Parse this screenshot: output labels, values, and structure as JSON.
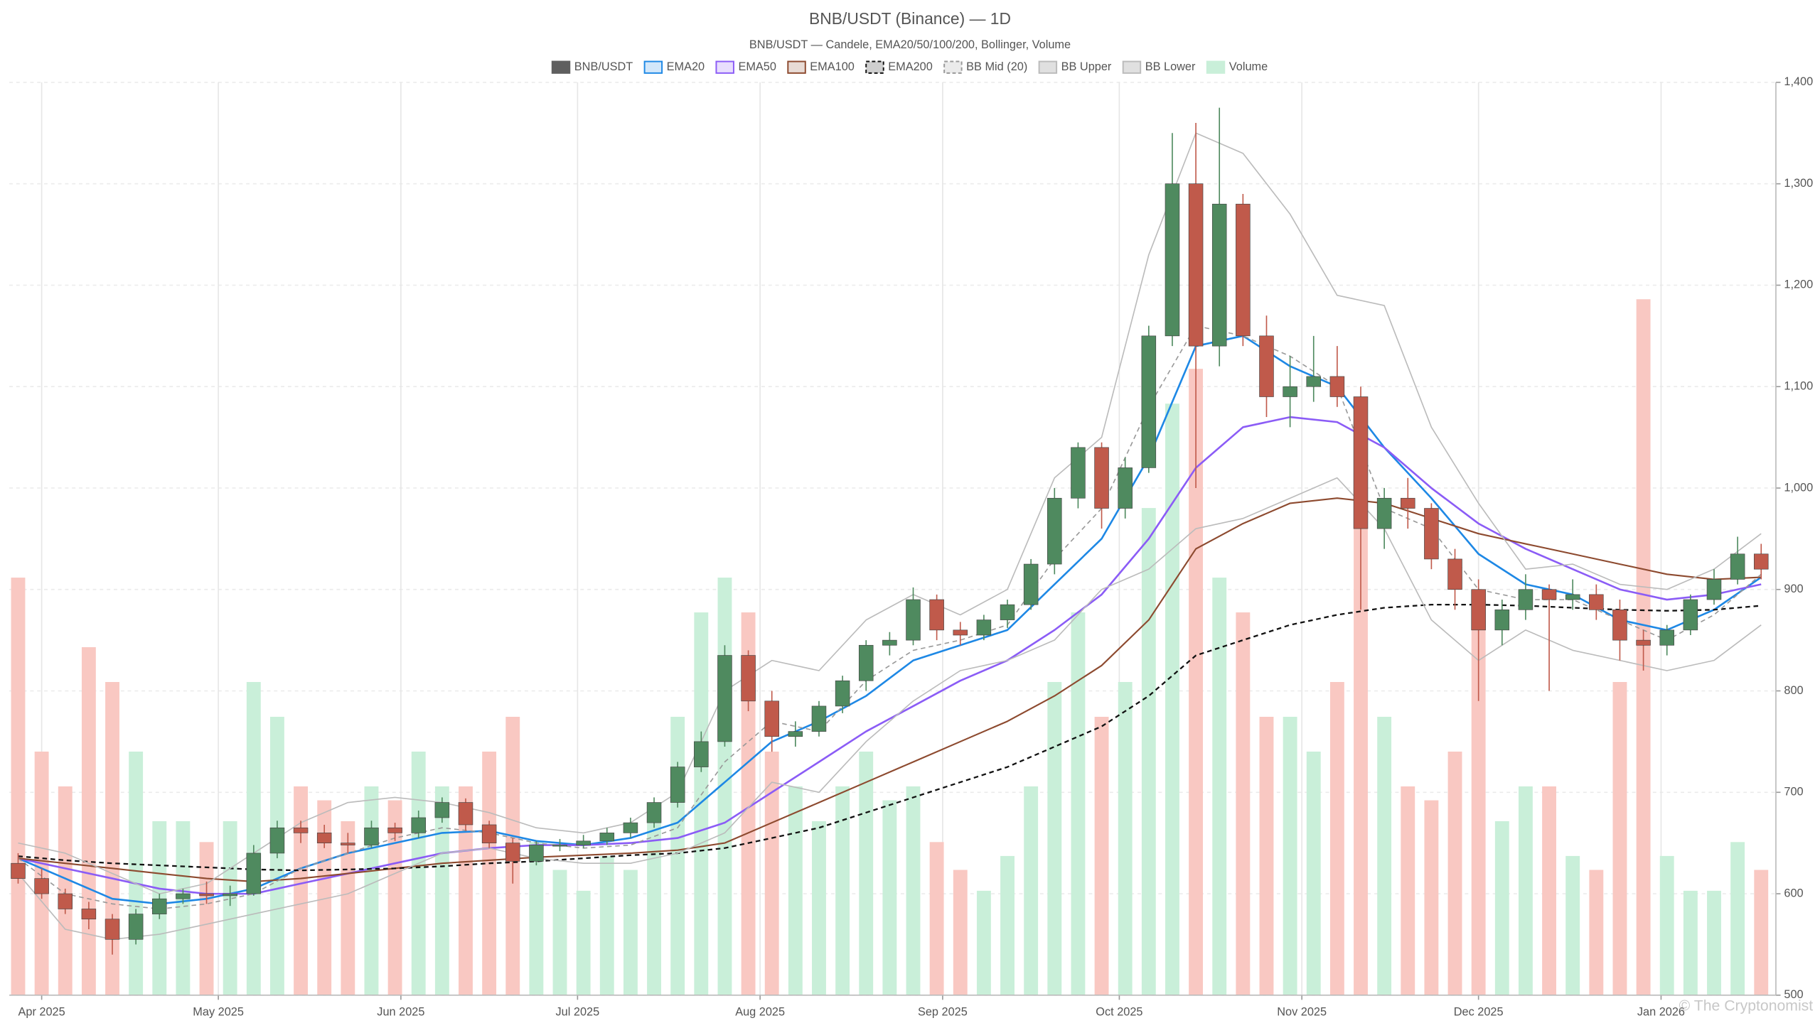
{
  "chart_data": {
    "type": "candlestick",
    "title": "BNB/USDT (Binance) — 1D",
    "subtitle": "BNB/USDT — Candele, EMA20/50/100/200, Bollinger, Volume",
    "watermark": "© The Cryptonomist",
    "price": {
      "name": "BNB/USDT",
      "color": "#5f5f5f",
      "up_color": "#4f8a5f",
      "down_color": "#c05a4b"
    },
    "x": [
      -4,
      0,
      4,
      8,
      12,
      16,
      20,
      24,
      28,
      32,
      36,
      40,
      44,
      48,
      52,
      56,
      60,
      64,
      68,
      72,
      76,
      80,
      84,
      88,
      92,
      96,
      100,
      104,
      108,
      112,
      116,
      120,
      124,
      128,
      132,
      136,
      140,
      144,
      148,
      152,
      156,
      160,
      164,
      168,
      172,
      176,
      180,
      184,
      188,
      192,
      196,
      200,
      204,
      208,
      212,
      216,
      220,
      224,
      228,
      232,
      236,
      240,
      244,
      248,
      252,
      256,
      260,
      264,
      268,
      272,
      276,
      280,
      284,
      288,
      292
    ],
    "candles": [
      [
        630,
        640,
        610,
        615
      ],
      [
        615,
        625,
        595,
        600
      ],
      [
        600,
        605,
        580,
        585
      ],
      [
        585,
        592,
        565,
        575
      ],
      [
        575,
        580,
        540,
        555
      ],
      [
        555,
        585,
        550,
        580
      ],
      [
        580,
        600,
        575,
        595
      ],
      [
        595,
        605,
        590,
        600
      ],
      [
        600,
        612,
        590,
        598
      ],
      [
        598,
        608,
        588,
        600
      ],
      [
        600,
        648,
        598,
        640
      ],
      [
        640,
        672,
        635,
        665
      ],
      [
        665,
        672,
        650,
        660
      ],
      [
        660,
        668,
        645,
        650
      ],
      [
        650,
        660,
        640,
        648
      ],
      [
        648,
        672,
        645,
        665
      ],
      [
        665,
        670,
        652,
        660
      ],
      [
        660,
        682,
        655,
        675
      ],
      [
        675,
        695,
        670,
        690
      ],
      [
        690,
        694,
        662,
        668
      ],
      [
        668,
        672,
        645,
        650
      ],
      [
        650,
        655,
        610,
        632
      ],
      [
        632,
        652,
        628,
        648
      ],
      [
        648,
        654,
        642,
        648
      ],
      [
        648,
        658,
        645,
        652
      ],
      [
        652,
        665,
        648,
        660
      ],
      [
        660,
        675,
        655,
        670
      ],
      [
        670,
        695,
        665,
        690
      ],
      [
        690,
        730,
        685,
        725
      ],
      [
        725,
        760,
        720,
        750
      ],
      [
        750,
        845,
        745,
        835
      ],
      [
        835,
        840,
        780,
        790
      ],
      [
        790,
        800,
        740,
        755
      ],
      [
        755,
        770,
        745,
        760
      ],
      [
        760,
        790,
        755,
        785
      ],
      [
        785,
        815,
        778,
        810
      ],
      [
        810,
        850,
        800,
        845
      ],
      [
        845,
        858,
        835,
        850
      ],
      [
        850,
        902,
        845,
        890
      ],
      [
        890,
        895,
        850,
        860
      ],
      [
        860,
        868,
        845,
        855
      ],
      [
        855,
        875,
        850,
        870
      ],
      [
        870,
        890,
        862,
        885
      ],
      [
        885,
        930,
        880,
        925
      ],
      [
        925,
        1000,
        915,
        990
      ],
      [
        990,
        1045,
        980,
        1040
      ],
      [
        1040,
        1045,
        960,
        980
      ],
      [
        980,
        1030,
        970,
        1020
      ],
      [
        1020,
        1160,
        1015,
        1150
      ],
      [
        1150,
        1350,
        1140,
        1300
      ],
      [
        1300,
        1360,
        1000,
        1140
      ],
      [
        1140,
        1375,
        1120,
        1280
      ],
      [
        1280,
        1290,
        1140,
        1150
      ],
      [
        1150,
        1170,
        1070,
        1090
      ],
      [
        1090,
        1130,
        1060,
        1100
      ],
      [
        1100,
        1150,
        1085,
        1110
      ],
      [
        1110,
        1140,
        1080,
        1090
      ],
      [
        1090,
        1100,
        880,
        960
      ],
      [
        960,
        1000,
        940,
        990
      ],
      [
        990,
        1010,
        960,
        980
      ],
      [
        980,
        985,
        920,
        930
      ],
      [
        930,
        940,
        880,
        900
      ],
      [
        900,
        910,
        790,
        860
      ],
      [
        860,
        890,
        845,
        880
      ],
      [
        880,
        915,
        870,
        900
      ],
      [
        900,
        905,
        800,
        890
      ],
      [
        890,
        910,
        880,
        895
      ],
      [
        895,
        905,
        870,
        880
      ],
      [
        880,
        890,
        830,
        850
      ],
      [
        850,
        860,
        820,
        845
      ],
      [
        845,
        865,
        835,
        860
      ],
      [
        860,
        895,
        855,
        890
      ],
      [
        890,
        920,
        885,
        910
      ],
      [
        910,
        952,
        905,
        935
      ],
      [
        935,
        945,
        910,
        920
      ]
    ],
    "volume": {
      "name": "Volume",
      "color": "#c9efd9",
      "up_color": "#c9efd9",
      "down_color": "#f9c8c2",
      "values": [
        60,
        35,
        30,
        50,
        45,
        35,
        25,
        25,
        22,
        25,
        45,
        40,
        30,
        28,
        25,
        30,
        28,
        35,
        30,
        30,
        35,
        40,
        22,
        18,
        15,
        20,
        18,
        25,
        40,
        55,
        60,
        55,
        35,
        30,
        25,
        30,
        35,
        28,
        30,
        22,
        18,
        15,
        20,
        30,
        45,
        55,
        40,
        45,
        70,
        85,
        90,
        60,
        55,
        40,
        40,
        35,
        45,
        75,
        40,
        30,
        28,
        35,
        55,
        25,
        30,
        30,
        20,
        18,
        45,
        100,
        20,
        15,
        15,
        22,
        18
      ]
    },
    "overlays": {
      "x": [
        -4,
        4,
        12,
        20,
        28,
        36,
        44,
        52,
        60,
        68,
        76,
        84,
        92,
        100,
        108,
        116,
        124,
        132,
        140,
        148,
        156,
        164,
        172,
        180,
        188,
        196,
        204,
        212,
        220,
        228,
        236,
        244,
        252,
        260,
        268,
        276,
        284,
        292
      ],
      "series": [
        {
          "name": "EMA20",
          "color": "#1e88e5",
          "width": 1.6,
          "dashed": false,
          "values": [
            635,
            615,
            595,
            590,
            595,
            605,
            625,
            640,
            650,
            660,
            662,
            652,
            648,
            655,
            670,
            710,
            750,
            770,
            795,
            830,
            845,
            860,
            905,
            950,
            1030,
            1140,
            1150,
            1120,
            1100,
            1040,
            990,
            935,
            905,
            895,
            870,
            860,
            880,
            912
          ]
        },
        {
          "name": "EMA50",
          "color": "#8b5cf6",
          "width": 1.6,
          "dashed": false,
          "values": [
            635,
            625,
            615,
            605,
            600,
            600,
            610,
            620,
            630,
            640,
            645,
            648,
            648,
            650,
            655,
            670,
            700,
            730,
            760,
            785,
            810,
            830,
            860,
            895,
            950,
            1020,
            1060,
            1070,
            1065,
            1040,
            1000,
            965,
            940,
            920,
            900,
            890,
            895,
            905
          ]
        },
        {
          "name": "EMA100",
          "color": "#8d4a2f",
          "width": 1.3,
          "dashed": false,
          "values": [
            635,
            630,
            625,
            620,
            615,
            612,
            615,
            620,
            625,
            630,
            633,
            636,
            638,
            640,
            643,
            650,
            670,
            690,
            710,
            730,
            750,
            770,
            795,
            825,
            870,
            940,
            965,
            985,
            990,
            985,
            970,
            955,
            945,
            935,
            925,
            915,
            910,
            912
          ]
        },
        {
          "name": "EMA200",
          "color": "#111111",
          "width": 1.4,
          "dashed": true,
          "values": [
            637,
            633,
            630,
            628,
            626,
            624,
            623,
            624,
            625,
            627,
            630,
            632,
            635,
            638,
            640,
            645,
            655,
            665,
            680,
            695,
            710,
            725,
            745,
            765,
            795,
            835,
            850,
            865,
            875,
            882,
            885,
            885,
            884,
            882,
            880,
            879,
            880,
            884
          ]
        },
        {
          "name": "BB Mid (20)",
          "color": "#999999",
          "width": 1,
          "dashed": true,
          "values": [
            635,
            600,
            590,
            585,
            590,
            600,
            625,
            640,
            655,
            665,
            660,
            650,
            645,
            648,
            665,
            730,
            770,
            760,
            810,
            840,
            850,
            865,
            930,
            980,
            1080,
            1160,
            1150,
            1130,
            1100,
            980,
            960,
            900,
            890,
            890,
            870,
            850,
            875,
            915
          ]
        },
        {
          "name": "BB Upper",
          "color": "#bbbbbb",
          "width": 1,
          "dashed": false,
          "values": [
            650,
            640,
            620,
            600,
            610,
            640,
            670,
            690,
            695,
            690,
            680,
            665,
            660,
            670,
            700,
            800,
            830,
            820,
            870,
            895,
            875,
            900,
            1010,
            1050,
            1230,
            1350,
            1330,
            1270,
            1190,
            1180,
            1060,
            985,
            920,
            925,
            905,
            900,
            920,
            955
          ]
        },
        {
          "name": "BB Lower",
          "color": "#bbbbbb",
          "width": 1,
          "dashed": false,
          "values": [
            620,
            565,
            555,
            560,
            570,
            580,
            590,
            600,
            620,
            640,
            645,
            635,
            630,
            630,
            640,
            660,
            710,
            700,
            750,
            790,
            820,
            830,
            850,
            900,
            920,
            960,
            970,
            990,
            1010,
            960,
            870,
            830,
            860,
            840,
            830,
            820,
            830,
            865
          ]
        }
      ]
    },
    "xlim": [
      -5.5,
      294.5
    ],
    "xticks": [
      {
        "value": 0,
        "label": "Apr 2025"
      },
      {
        "value": 30,
        "label": "May 2025"
      },
      {
        "value": 61,
        "label": "Jun 2025"
      },
      {
        "value": 91,
        "label": "Jul 2025"
      },
      {
        "value": 122,
        "label": "Aug 2025"
      },
      {
        "value": 153,
        "label": "Sep 2025"
      },
      {
        "value": 183,
        "label": "Oct 2025"
      },
      {
        "value": 214,
        "label": "Nov 2025"
      },
      {
        "value": 244,
        "label": "Dec 2025"
      },
      {
        "value": 275,
        "label": "Jan 2026"
      }
    ],
    "ylim": [
      500,
      1400
    ],
    "yticks": [
      500,
      600,
      700,
      800,
      900,
      {
        "value": 1000,
        "label": "1,000"
      },
      {
        "value": 1100,
        "label": "1,100"
      },
      {
        "value": 1200,
        "label": "1,200"
      },
      {
        "value": 1300,
        "label": "1,300"
      },
      {
        "value": 1400,
        "label": "1,400"
      }
    ],
    "grid": true
  }
}
